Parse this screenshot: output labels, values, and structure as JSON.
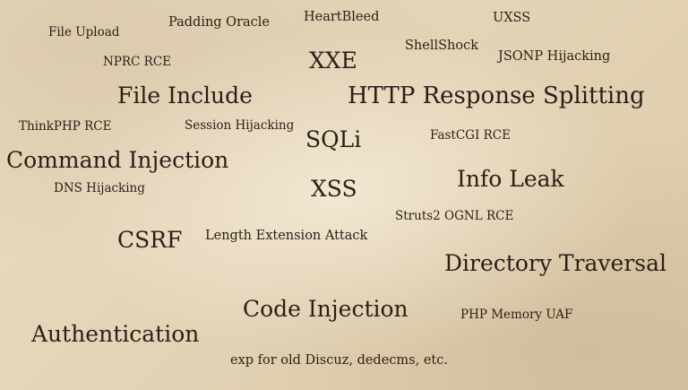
{
  "terms": {
    "file_upload": "File Upload",
    "padding_oracle": "Padding Oracle",
    "heartbleed": "HeartBleed",
    "uxss": "UXSS",
    "nprc_rce": "NPRC RCE",
    "xxe": "XXE",
    "shellshock": "ShellShock",
    "jsonp_hijacking": "JSONP Hijacking",
    "file_include": "File Include",
    "http_response_splitting": "HTTP Response Splitting",
    "thinkphp_rce": "ThinkPHP RCE",
    "session_hijacking": "Session Hijacking",
    "sqli": "SQLi",
    "fastcgi_rce": "FastCGI RCE",
    "command_injection": "Command Injection",
    "dns_hijacking": "DNS Hijacking",
    "xss": "XSS",
    "info_leak": "Info Leak",
    "struts2_ognl_rce": "Struts2 OGNL RCE",
    "csrf": "CSRF",
    "length_extension_attack": "Length Extension Attack",
    "directory_traversal": "Directory Traversal",
    "code_injection": "Code Injection",
    "php_memory_uaf": "PHP Memory UAF",
    "authentication": "Authentication",
    "exp_old_cms": "exp for old Discuz, dedecms, etc."
  },
  "colors": {
    "text": "#2a1f17",
    "paper": "#e6d8bf"
  }
}
